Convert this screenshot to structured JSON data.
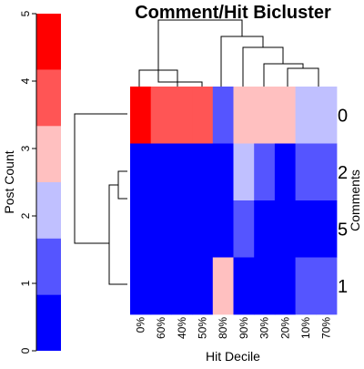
{
  "chart_data": {
    "type": "heatmap",
    "title": "Comment/Hit Bicluster",
    "xlabel": "Hit Decile",
    "ylabel": "Comments",
    "column_labels": [
      "0%",
      "60%",
      "40%",
      "50%",
      "80%",
      "90%",
      "30%",
      "20%",
      "10%",
      "70%"
    ],
    "row_labels": [
      "0",
      "2",
      "5",
      "1"
    ],
    "values": [
      [
        5,
        4,
        4,
        4,
        1,
        3,
        3,
        3,
        2,
        2
      ],
      [
        0,
        0,
        0,
        0,
        0,
        2,
        1,
        0,
        1,
        1
      ],
      [
        0,
        0,
        0,
        0,
        0,
        1,
        0,
        0,
        0,
        0
      ],
      [
        0,
        0,
        0,
        0,
        3,
        0,
        0,
        0,
        1,
        1
      ]
    ],
    "color_key": {
      "label": "Post Count",
      "range": [
        0,
        5
      ],
      "ticks": [
        "0",
        "1",
        "2",
        "3",
        "4",
        "5"
      ],
      "bins": [
        {
          "range": [
            0,
            0.833
          ],
          "color": "#0000FF"
        },
        {
          "range": [
            0.833,
            1.667
          ],
          "color": "#5555FF"
        },
        {
          "range": [
            1.667,
            2.5
          ],
          "color": "#C0C0FF"
        },
        {
          "range": [
            2.5,
            3.333
          ],
          "color": "#FFC0C0"
        },
        {
          "range": [
            3.333,
            4.167
          ],
          "color": "#FF5555"
        },
        {
          "range": [
            4.167,
            5
          ],
          "color": "#FF0000"
        }
      ]
    },
    "row_dendrogram": true,
    "column_dendrogram": true,
    "grid": false
  }
}
